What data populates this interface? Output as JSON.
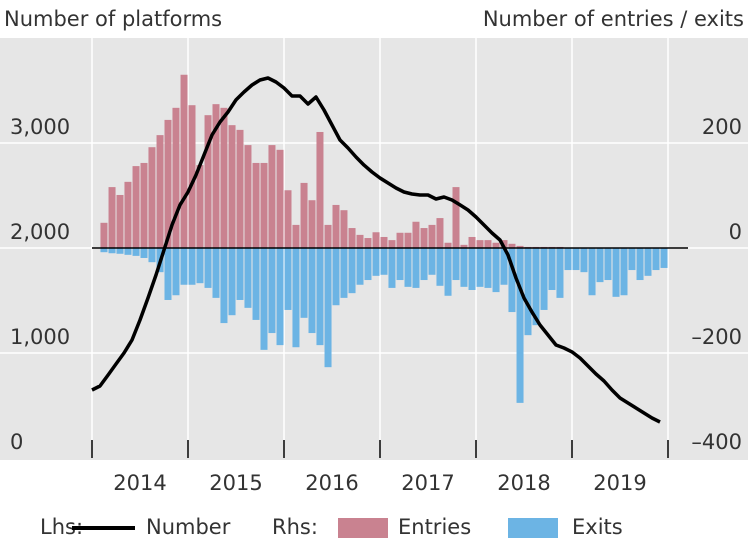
{
  "chart_data": {
    "type": "combo",
    "y_axis_title": "Number of platforms",
    "y2_axis_title": "Number of entries / exits",
    "legend_prefixes": [
      "Lhs:",
      "Rhs:"
    ],
    "x": [
      2014,
      2014.083,
      2014.167,
      2014.25,
      2014.333,
      2014.417,
      2014.5,
      2014.583,
      2014.667,
      2014.75,
      2014.833,
      2014.917,
      2015,
      2015.083,
      2015.167,
      2015.25,
      2015.333,
      2015.417,
      2015.5,
      2015.583,
      2015.667,
      2015.75,
      2015.833,
      2015.917,
      2016,
      2016.083,
      2016.167,
      2016.25,
      2016.333,
      2016.417,
      2016.5,
      2016.583,
      2016.667,
      2016.75,
      2016.833,
      2016.917,
      2017,
      2017.083,
      2017.167,
      2017.25,
      2017.333,
      2017.417,
      2017.5,
      2017.583,
      2017.667,
      2017.75,
      2017.833,
      2017.917,
      2018,
      2018.083,
      2018.167,
      2018.25,
      2018.333,
      2018.417,
      2018.5,
      2018.583,
      2018.667,
      2018.75,
      2018.833,
      2018.917,
      2019,
      2019.083,
      2019.167,
      2019.25,
      2019.333,
      2019.417,
      2019.5,
      2019.583,
      2019.667,
      2019.75,
      2019.833,
      2019.917
    ],
    "xlim": [
      2014,
      2020
    ],
    "xticks": [
      2014,
      2015,
      2016,
      2017,
      2018,
      2019,
      2020
    ],
    "x_labels": [
      "2014",
      "2015",
      "2016",
      "2017",
      "2018",
      "2019"
    ],
    "ylim": [
      0,
      4000
    ],
    "yticks": [
      0,
      {
        "value": 1000,
        "label": "1,000"
      },
      {
        "value": 2000,
        "label": "2,000"
      },
      {
        "value": 3000,
        "label": "3,000"
      }
    ],
    "y2lim": [
      -400,
      400
    ],
    "y2ticks": [
      {
        "value": -400,
        "label": "–400"
      },
      {
        "value": -200,
        "label": "–200"
      },
      0,
      200
    ],
    "grid": true,
    "series": [
      {
        "name": "Number",
        "type": "line",
        "axis": "y",
        "color": "#000000",
        "values": [
          648,
          686,
          790,
          895,
          1000,
          1124,
          1314,
          1524,
          1743,
          1981,
          2219,
          2410,
          2533,
          2695,
          2886,
          3076,
          3200,
          3295,
          3410,
          3486,
          3552,
          3600,
          3619,
          3581,
          3524,
          3448,
          3448,
          3371,
          3438,
          3314,
          3171,
          3029,
          2952,
          2867,
          2790,
          2724,
          2667,
          2619,
          2571,
          2533,
          2514,
          2505,
          2505,
          2467,
          2486,
          2457,
          2410,
          2362,
          2295,
          2219,
          2143,
          2076,
          1933,
          1714,
          1524,
          1390,
          1267,
          1171,
          1076,
          1048,
          1010,
          952,
          876,
          800,
          733,
          648,
          571,
          524,
          476,
          429,
          381,
          343
        ]
      },
      {
        "name": "Entries",
        "type": "bar",
        "axis": "y2",
        "color": "#c98290",
        "values": [
          null,
          48,
          116,
          101,
          126,
          156,
          162,
          192,
          215,
          244,
          267,
          330,
          272,
          158,
          253,
          274,
          267,
          234,
          225,
          196,
          162,
          162,
          196,
          187,
          110,
          44,
          124,
          91,
          221,
          44,
          82,
          72,
          38,
          25,
          19,
          30,
          21,
          15,
          29,
          29,
          50,
          38,
          44,
          57,
          10,
          116,
          6,
          21,
          15,
          15,
          10,
          15,
          8,
          4,
          2,
          2,
          2,
          2,
          2,
          0,
          0,
          0,
          0,
          0,
          0,
          0,
          0,
          0,
          0,
          0,
          0,
          0
        ]
      },
      {
        "name": "Exits",
        "type": "bar",
        "axis": "y2",
        "color": "#6cb4e4",
        "values": [
          null,
          -8,
          -10,
          -11,
          -13,
          -15,
          -19,
          -27,
          -46,
          -99,
          -90,
          -70,
          -70,
          -67,
          -76,
          -95,
          -143,
          -128,
          -99,
          -114,
          -137,
          -194,
          -162,
          -185,
          -118,
          -189,
          -133,
          -162,
          -185,
          -227,
          -109,
          -95,
          -86,
          -70,
          -61,
          -53,
          -51,
          -76,
          -61,
          -74,
          -76,
          -61,
          -51,
          -72,
          -91,
          -61,
          -74,
          -80,
          -74,
          -76,
          -84,
          -70,
          -122,
          -295,
          -166,
          -147,
          -118,
          -80,
          -95,
          -42,
          -42,
          -46,
          -90,
          -65,
          -61,
          -93,
          -90,
          -42,
          -61,
          -53,
          -42,
          -38
        ]
      }
    ]
  }
}
